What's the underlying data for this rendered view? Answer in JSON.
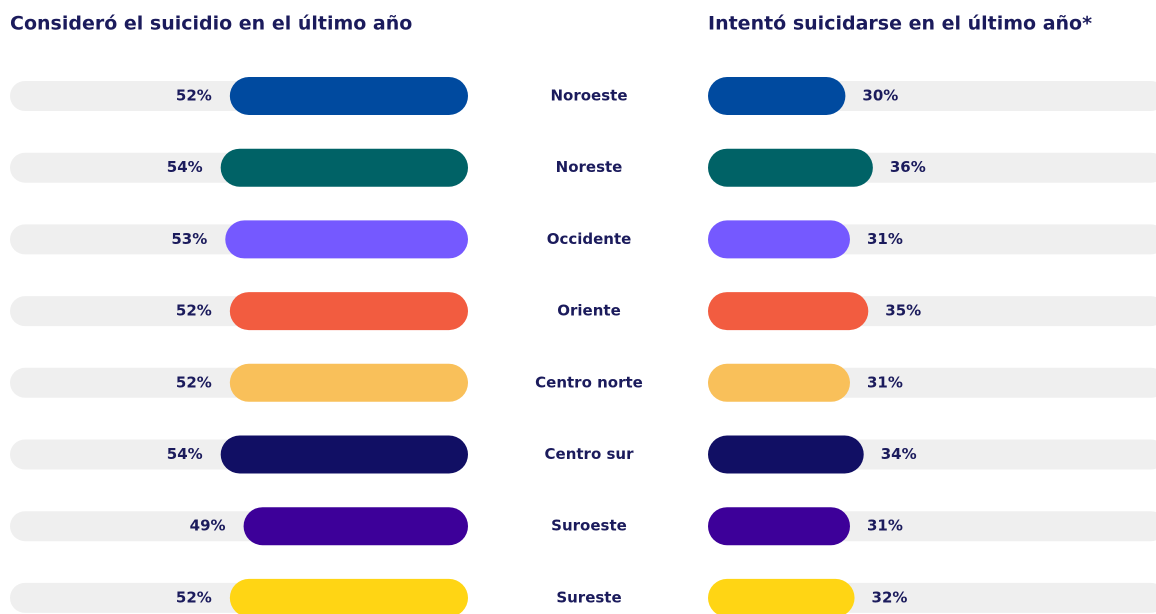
{
  "chart_data": {
    "type": "bar",
    "categories": [
      "Noroeste",
      "Noreste",
      "Occidente",
      "Oriente",
      "Centro norte",
      "Centro sur",
      "Suroeste",
      "Sureste"
    ],
    "colors": [
      "#004a9f",
      "#006266",
      "#7559ff",
      "#f25c40",
      "#f9c05a",
      "#110f64",
      "#3d0099",
      "#ffd514"
    ],
    "xlim": [
      0,
      100
    ],
    "series": [
      {
        "name": "Consideró el suicidio en el último año",
        "values": [
          52,
          54,
          53,
          52,
          52,
          54,
          49,
          52
        ],
        "value_labels": [
          "52%",
          "54%",
          "53%",
          "52%",
          "52%",
          "54%",
          "49%",
          "52%"
        ]
      },
      {
        "name": "Intentó suicidarse en el último año*",
        "values": [
          30,
          36,
          31,
          35,
          31,
          34,
          31,
          32
        ],
        "value_labels": [
          "30%",
          "36%",
          "31%",
          "35%",
          "31%",
          "34%",
          "31%",
          "32%"
        ]
      }
    ]
  }
}
